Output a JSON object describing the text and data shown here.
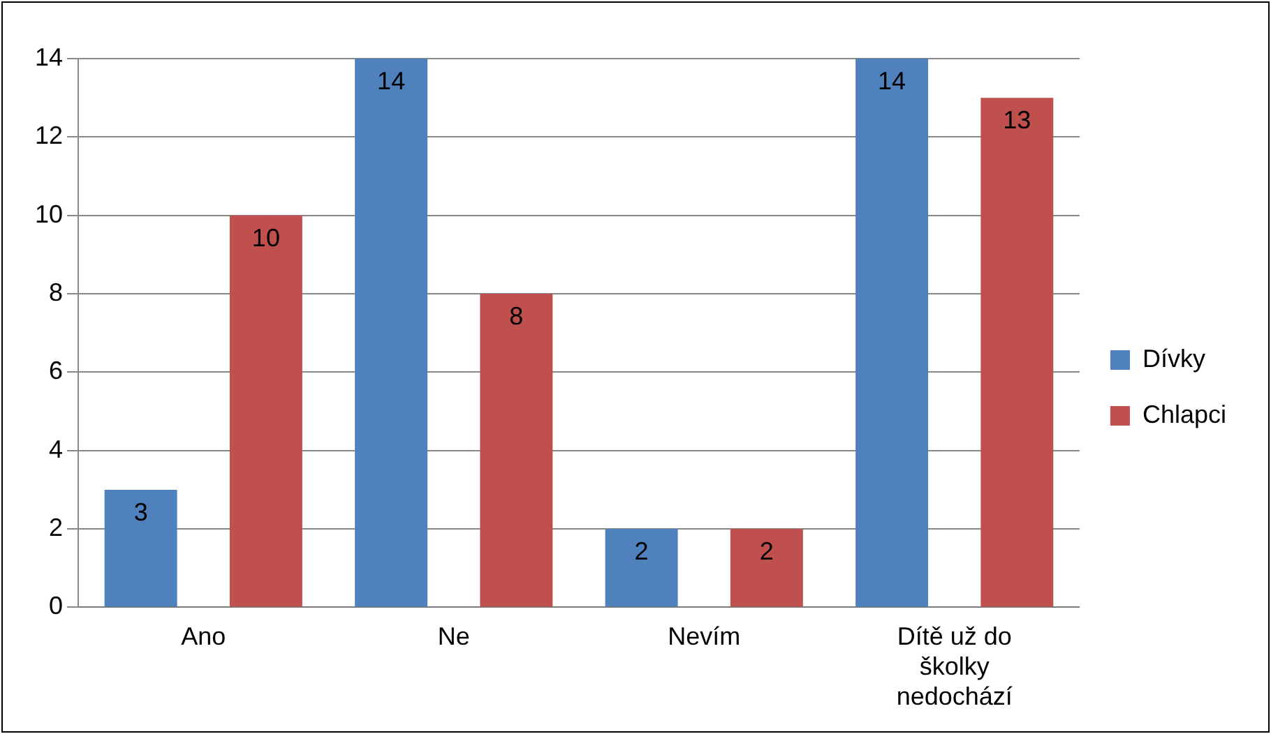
{
  "chart_data": {
    "type": "bar",
    "categories": [
      "Ano",
      "Ne",
      "Nevím",
      "Dítě už do školky nedochází"
    ],
    "series": [
      {
        "name": "Dívky",
        "color": "#4f81bd",
        "values": [
          3,
          14,
          2,
          14
        ]
      },
      {
        "name": "Chlapci",
        "color": "#c0504d",
        "values": [
          10,
          8,
          2,
          13
        ]
      }
    ],
    "ylim": [
      0,
      14
    ],
    "yticks": [
      0,
      2,
      4,
      6,
      8,
      10,
      12,
      14
    ],
    "grid": "y",
    "legend": "right",
    "data_labels": true
  }
}
